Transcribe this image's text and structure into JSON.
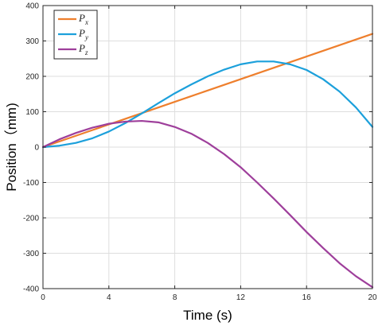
{
  "chart_data": {
    "type": "line",
    "xlabel": "Time (s)",
    "ylabel": "Position（mm)",
    "xlim": [
      0,
      20
    ],
    "ylim": [
      -400,
      400
    ],
    "xticks": [
      0,
      4,
      8,
      12,
      16,
      20
    ],
    "yticks": [
      -400,
      -300,
      -200,
      -100,
      0,
      100,
      200,
      300,
      400
    ],
    "grid": true,
    "legend_position": "top-left",
    "x": [
      0,
      1,
      2,
      3,
      4,
      5,
      6,
      7,
      8,
      9,
      10,
      11,
      12,
      13,
      14,
      15,
      16,
      17,
      18,
      19,
      20
    ],
    "series": [
      {
        "name": "P",
        "subscript": "x",
        "color": "#EE7F2D",
        "values": [
          0,
          16,
          32,
          48,
          64,
          80,
          96,
          112,
          128,
          144,
          160,
          176,
          192,
          208,
          224,
          240,
          256,
          272,
          288,
          304,
          320
        ]
      },
      {
        "name": "P",
        "subscript": "y",
        "color": "#1CA0DB",
        "values": [
          0,
          4,
          12,
          25,
          44,
          68,
          95,
          124,
          152,
          177,
          200,
          219,
          234,
          242,
          242,
          234,
          218,
          192,
          157,
          112,
          57
        ]
      },
      {
        "name": "P",
        "subscript": "z",
        "color": "#9E3F9B",
        "values": [
          0,
          22,
          40,
          55,
          66,
          72,
          74,
          70,
          57,
          38,
          12,
          -20,
          -57,
          -100,
          -145,
          -192,
          -240,
          -285,
          -328,
          -365,
          -396
        ]
      }
    ]
  }
}
